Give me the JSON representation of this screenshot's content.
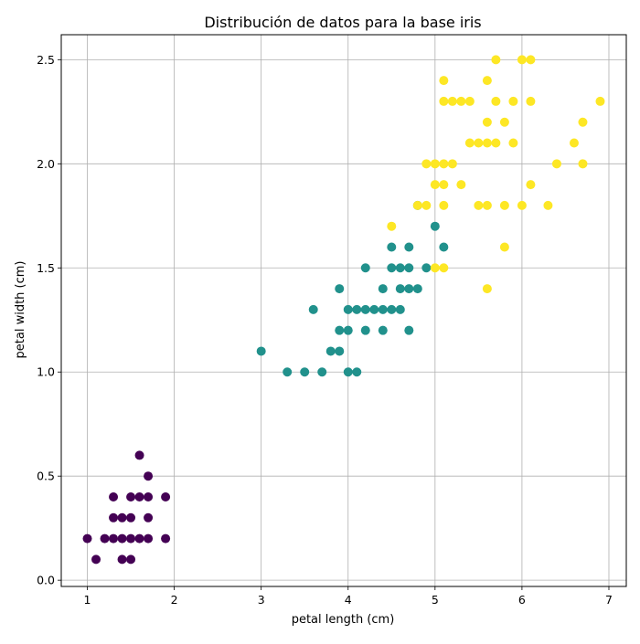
{
  "chart_data": {
    "type": "scatter",
    "title": "Distribución de datos para la base iris",
    "xlabel": "petal length (cm)",
    "ylabel": "petal width (cm)",
    "xlim": [
      0.7,
      7.2
    ],
    "ylim": [
      -0.03,
      2.62
    ],
    "xticks": [
      1,
      2,
      3,
      4,
      5,
      6,
      7
    ],
    "yticks": [
      0.0,
      0.5,
      1.0,
      1.5,
      2.0,
      2.5
    ],
    "xtick_labels": [
      "1",
      "2",
      "3",
      "4",
      "5",
      "6",
      "7"
    ],
    "ytick_labels": [
      "0.0",
      "0.5",
      "1.0",
      "1.5",
      "2.0",
      "2.5"
    ],
    "grid": true,
    "legend": false,
    "series": [
      {
        "color": "#440154",
        "points": [
          [
            1.0,
            0.2
          ],
          [
            1.1,
            0.1
          ],
          [
            1.2,
            0.2
          ],
          [
            1.3,
            0.2
          ],
          [
            1.3,
            0.3
          ],
          [
            1.3,
            0.4
          ],
          [
            1.4,
            0.1
          ],
          [
            1.4,
            0.2
          ],
          [
            1.4,
            0.3
          ],
          [
            1.5,
            0.1
          ],
          [
            1.5,
            0.2
          ],
          [
            1.5,
            0.3
          ],
          [
            1.5,
            0.4
          ],
          [
            1.6,
            0.2
          ],
          [
            1.6,
            0.4
          ],
          [
            1.6,
            0.6
          ],
          [
            1.7,
            0.2
          ],
          [
            1.7,
            0.3
          ],
          [
            1.7,
            0.4
          ],
          [
            1.7,
            0.5
          ],
          [
            1.9,
            0.2
          ],
          [
            1.9,
            0.4
          ]
        ]
      },
      {
        "color": "#21918c",
        "points": [
          [
            3.0,
            1.1
          ],
          [
            3.3,
            1.0
          ],
          [
            3.5,
            1.0
          ],
          [
            3.6,
            1.3
          ],
          [
            3.7,
            1.0
          ],
          [
            3.8,
            1.1
          ],
          [
            3.9,
            1.1
          ],
          [
            3.9,
            1.2
          ],
          [
            3.9,
            1.4
          ],
          [
            4.0,
            1.0
          ],
          [
            4.0,
            1.2
          ],
          [
            4.0,
            1.3
          ],
          [
            4.1,
            1.0
          ],
          [
            4.1,
            1.3
          ],
          [
            4.2,
            1.2
          ],
          [
            4.2,
            1.3
          ],
          [
            4.2,
            1.5
          ],
          [
            4.3,
            1.3
          ],
          [
            4.4,
            1.2
          ],
          [
            4.4,
            1.3
          ],
          [
            4.4,
            1.4
          ],
          [
            4.5,
            1.3
          ],
          [
            4.5,
            1.5
          ],
          [
            4.5,
            1.6
          ],
          [
            4.6,
            1.3
          ],
          [
            4.6,
            1.4
          ],
          [
            4.6,
            1.5
          ],
          [
            4.7,
            1.2
          ],
          [
            4.7,
            1.4
          ],
          [
            4.7,
            1.5
          ],
          [
            4.7,
            1.6
          ],
          [
            4.8,
            1.4
          ],
          [
            4.8,
            1.8
          ],
          [
            4.9,
            1.5
          ],
          [
            5.0,
            1.7
          ],
          [
            5.1,
            1.6
          ]
        ]
      },
      {
        "color": "#fde725",
        "points": [
          [
            4.5,
            1.7
          ],
          [
            4.8,
            1.8
          ],
          [
            4.9,
            1.8
          ],
          [
            4.9,
            2.0
          ],
          [
            5.0,
            1.5
          ],
          [
            5.0,
            1.9
          ],
          [
            5.0,
            2.0
          ],
          [
            5.1,
            1.5
          ],
          [
            5.1,
            1.8
          ],
          [
            5.1,
            1.9
          ],
          [
            5.1,
            2.0
          ],
          [
            5.1,
            2.3
          ],
          [
            5.1,
            2.4
          ],
          [
            5.2,
            2.0
          ],
          [
            5.2,
            2.3
          ],
          [
            5.3,
            1.9
          ],
          [
            5.3,
            2.3
          ],
          [
            5.4,
            2.1
          ],
          [
            5.4,
            2.3
          ],
          [
            5.5,
            1.8
          ],
          [
            5.5,
            2.1
          ],
          [
            5.6,
            1.4
          ],
          [
            5.6,
            1.8
          ],
          [
            5.6,
            2.1
          ],
          [
            5.6,
            2.2
          ],
          [
            5.6,
            2.4
          ],
          [
            5.7,
            2.1
          ],
          [
            5.7,
            2.3
          ],
          [
            5.7,
            2.5
          ],
          [
            5.8,
            1.6
          ],
          [
            5.8,
            1.8
          ],
          [
            5.8,
            2.2
          ],
          [
            5.9,
            2.1
          ],
          [
            5.9,
            2.3
          ],
          [
            6.0,
            1.8
          ],
          [
            6.0,
            2.5
          ],
          [
            6.1,
            1.9
          ],
          [
            6.1,
            2.3
          ],
          [
            6.1,
            2.5
          ],
          [
            6.3,
            1.8
          ],
          [
            6.4,
            2.0
          ],
          [
            6.6,
            2.1
          ],
          [
            6.7,
            2.0
          ],
          [
            6.7,
            2.2
          ],
          [
            6.9,
            2.3
          ]
        ]
      }
    ]
  }
}
